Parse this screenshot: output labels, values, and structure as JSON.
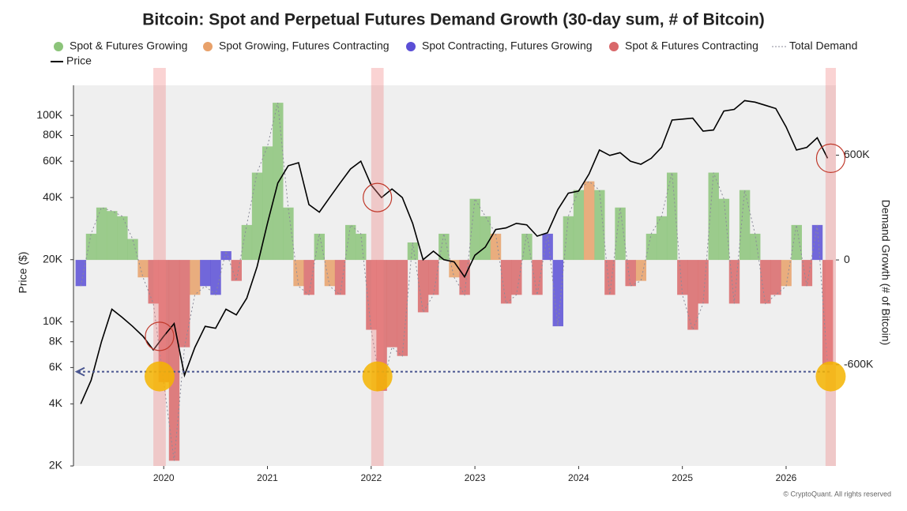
{
  "chart_data": {
    "type": "regime_area_line",
    "title": "Bitcoin: Spot and Perpetual Futures Demand Growth (30-day sum, # of Bitcoin)",
    "y_label": "Price ($)",
    "y2_label": "Demand Growth (# of Bitcoin)",
    "copyright": "© CryptoQuant. All rights reserved",
    "log_y": true,
    "xlim": [
      2019.13,
      2026.48
    ],
    "xticks": [
      2020,
      2021,
      2022,
      2023,
      2024,
      2025,
      2026
    ],
    "ylim": [
      2000,
      140000
    ],
    "yticks": [
      {
        "value": 2000,
        "label": "2K"
      },
      {
        "value": 4000,
        "label": "4K"
      },
      {
        "value": 6000,
        "label": "6K"
      },
      {
        "value": 8000,
        "label": "8K"
      },
      {
        "value": 10000,
        "label": "10K"
      },
      {
        "value": 20000,
        "label": "20K"
      },
      {
        "value": 40000,
        "label": "40K"
      },
      {
        "value": 60000,
        "label": "60K"
      },
      {
        "value": 80000,
        "label": "80K"
      },
      {
        "value": 100000,
        "label": "100K"
      }
    ],
    "y2lim": [
      -1180000,
      1000000
    ],
    "y2ticks": [
      {
        "value": -600000,
        "label": "-600K"
      },
      0,
      {
        "value": 600000,
        "label": "600K"
      }
    ],
    "highlights": [
      [
        2019.9,
        2020.02
      ],
      [
        2022.0,
        2022.12
      ],
      [
        2026.38,
        2026.48
      ]
    ],
    "reference_line": -640000,
    "x": [
      2019.2,
      2019.3,
      2019.4,
      2019.5,
      2019.6,
      2019.7,
      2019.8,
      2019.9,
      2020.0,
      2020.1,
      2020.2,
      2020.3,
      2020.4,
      2020.5,
      2020.6,
      2020.7,
      2020.8,
      2020.9,
      2021.0,
      2021.1,
      2021.2,
      2021.3,
      2021.4,
      2021.5,
      2021.6,
      2021.7,
      2021.8,
      2021.9,
      2022.0,
      2022.1,
      2022.2,
      2022.3,
      2022.4,
      2022.5,
      2022.6,
      2022.7,
      2022.8,
      2022.9,
      2023.0,
      2023.1,
      2023.2,
      2023.3,
      2023.4,
      2023.5,
      2023.6,
      2023.7,
      2023.8,
      2023.9,
      2024.0,
      2024.1,
      2024.2,
      2024.3,
      2024.4,
      2024.5,
      2024.6,
      2024.7,
      2024.8,
      2024.9,
      2025.0,
      2025.1,
      2025.2,
      2025.3,
      2025.4,
      2025.5,
      2025.6,
      2025.7,
      2025.8,
      2025.9,
      2026.0,
      2026.1,
      2026.2,
      2026.3,
      2026.4
    ],
    "series": [
      {
        "name": "Spot & Futures Growing",
        "color": "#8cc47a",
        "axis": "y2",
        "values": [
          null,
          150000,
          300000,
          280000,
          250000,
          120000,
          null,
          null,
          null,
          null,
          null,
          null,
          null,
          null,
          null,
          null,
          200000,
          500000,
          650000,
          900000,
          300000,
          null,
          null,
          150000,
          null,
          null,
          200000,
          150000,
          null,
          null,
          null,
          null,
          100000,
          null,
          null,
          150000,
          null,
          null,
          350000,
          250000,
          null,
          null,
          null,
          150000,
          null,
          null,
          null,
          250000,
          400000,
          null,
          400000,
          null,
          300000,
          null,
          null,
          150000,
          250000,
          500000,
          null,
          null,
          null,
          500000,
          350000,
          null,
          400000,
          150000,
          null,
          null,
          null,
          200000,
          null,
          null,
          null
        ]
      },
      {
        "name": "Spot Growing, Futures Contracting",
        "color": "#e8a16a",
        "axis": "y2",
        "values": [
          null,
          null,
          null,
          null,
          null,
          null,
          -100000,
          null,
          null,
          null,
          null,
          -200000,
          null,
          null,
          null,
          null,
          null,
          null,
          null,
          null,
          null,
          -150000,
          null,
          null,
          -150000,
          null,
          null,
          null,
          null,
          null,
          null,
          null,
          null,
          null,
          null,
          null,
          -100000,
          null,
          null,
          null,
          150000,
          null,
          null,
          null,
          null,
          null,
          null,
          null,
          null,
          450000,
          null,
          null,
          null,
          null,
          -120000,
          null,
          null,
          null,
          null,
          null,
          null,
          null,
          null,
          null,
          null,
          null,
          null,
          null,
          -150000,
          null,
          null,
          null,
          null
        ]
      },
      {
        "name": "Spot Contracting, Futures Growing",
        "color": "#5b4fd6",
        "axis": "y2",
        "values": [
          -150000,
          null,
          null,
          null,
          null,
          null,
          null,
          null,
          null,
          null,
          null,
          null,
          -150000,
          -200000,
          50000,
          null,
          null,
          null,
          null,
          null,
          null,
          null,
          null,
          null,
          null,
          null,
          null,
          null,
          null,
          null,
          null,
          null,
          null,
          null,
          null,
          null,
          null,
          null,
          null,
          null,
          null,
          null,
          null,
          null,
          null,
          150000,
          -380000,
          null,
          null,
          null,
          null,
          null,
          null,
          null,
          null,
          null,
          null,
          null,
          null,
          null,
          null,
          null,
          null,
          null,
          null,
          null,
          null,
          null,
          null,
          null,
          null,
          200000,
          null
        ]
      },
      {
        "name": "Spot & Futures Contracting",
        "color": "#d9686a",
        "axis": "y2",
        "values": [
          null,
          null,
          null,
          null,
          null,
          null,
          null,
          -250000,
          -700000,
          -1150000,
          -500000,
          null,
          null,
          null,
          null,
          -120000,
          null,
          null,
          null,
          null,
          null,
          null,
          -200000,
          null,
          null,
          -200000,
          null,
          null,
          -400000,
          -750000,
          -500000,
          -550000,
          null,
          -300000,
          -200000,
          null,
          null,
          -200000,
          null,
          null,
          null,
          -250000,
          -200000,
          null,
          -200000,
          null,
          null,
          null,
          null,
          null,
          null,
          -200000,
          null,
          -150000,
          null,
          null,
          null,
          null,
          -200000,
          -400000,
          -250000,
          null,
          null,
          -250000,
          null,
          null,
          -250000,
          -200000,
          null,
          null,
          -150000,
          null,
          -600000
        ]
      },
      {
        "name": "Total Demand",
        "color": "#8a8a99",
        "axis": "y2",
        "values": [
          -150000,
          150000,
          300000,
          280000,
          250000,
          120000,
          -100000,
          -250000,
          -700000,
          -1150000,
          -500000,
          -200000,
          -150000,
          -200000,
          50000,
          -120000,
          200000,
          500000,
          650000,
          900000,
          300000,
          -150000,
          -200000,
          150000,
          -150000,
          -200000,
          200000,
          150000,
          -400000,
          -750000,
          -500000,
          -550000,
          100000,
          -300000,
          -200000,
          150000,
          -100000,
          -200000,
          350000,
          250000,
          150000,
          -250000,
          -200000,
          150000,
          -200000,
          150000,
          -380000,
          250000,
          400000,
          450000,
          400000,
          -200000,
          300000,
          -150000,
          -120000,
          150000,
          250000,
          500000,
          -200000,
          -400000,
          -250000,
          500000,
          350000,
          -250000,
          400000,
          150000,
          -250000,
          -200000,
          -150000,
          200000,
          -150000,
          200000,
          -600000
        ]
      },
      {
        "name": "Price",
        "color": "#000000",
        "axis": "y",
        "values": [
          4000,
          5200,
          8000,
          11500,
          10500,
          9500,
          8500,
          7300,
          8500,
          9800,
          5500,
          7500,
          9500,
          9300,
          11500,
          10800,
          13000,
          18500,
          30000,
          47000,
          57000,
          59000,
          37000,
          34000,
          40000,
          47000,
          55000,
          60000,
          46000,
          40000,
          44000,
          40000,
          30000,
          20000,
          22000,
          20000,
          19500,
          16500,
          21000,
          23000,
          28000,
          28500,
          30000,
          29500,
          26000,
          27000,
          35000,
          42000,
          43000,
          52000,
          68000,
          64000,
          66000,
          60000,
          58000,
          62000,
          70000,
          95000,
          96000,
          97000,
          84000,
          85000,
          105000,
          107000,
          118000,
          116000,
          112000,
          108000,
          88000,
          68000,
          70000,
          78000,
          62000
        ]
      }
    ]
  }
}
